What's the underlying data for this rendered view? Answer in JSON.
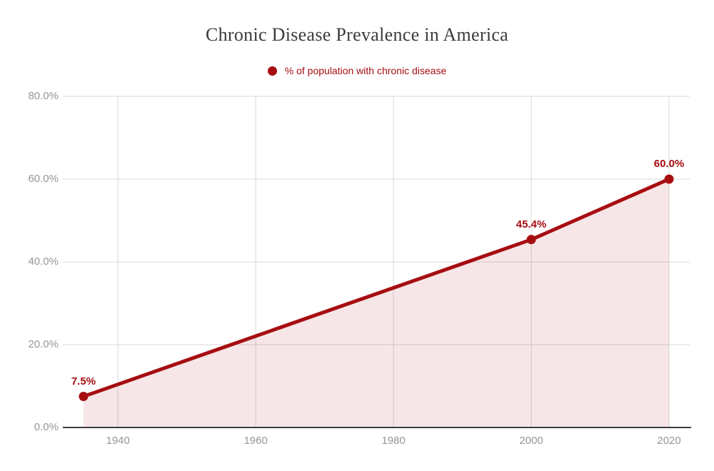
{
  "chart_data": {
    "type": "area",
    "title": "Chronic Disease Prevalence in America",
    "legend_label": "% of population with chronic disease",
    "legend_position": "top",
    "legend_marker": "circle-icon",
    "grid": true,
    "xlabel": "",
    "ylabel": "",
    "xlim": [
      1932,
      2023
    ],
    "ylim": [
      0,
      80
    ],
    "x": [
      1935,
      2000,
      2020
    ],
    "series": [
      {
        "name": "% of population with chronic disease",
        "values": [
          7.5,
          45.4,
          60.0
        ]
      }
    ],
    "points": [
      {
        "x": 1935,
        "y": 7.5,
        "label": "7.5%"
      },
      {
        "x": 2000,
        "y": 45.4,
        "label": "45.4%"
      },
      {
        "x": 2020,
        "y": 60.0,
        "label": "60.0%"
      }
    ],
    "xticks": [
      {
        "value": 1940,
        "label": "1940"
      },
      {
        "value": 1960,
        "label": "1960"
      },
      {
        "value": 1980,
        "label": "1980"
      },
      {
        "value": 2000,
        "label": "2000"
      },
      {
        "value": 2020,
        "label": "2020"
      }
    ],
    "yticks": [
      {
        "value": 0,
        "label": "0.0%"
      },
      {
        "value": 20,
        "label": "20.0%"
      },
      {
        "value": 40,
        "label": "40.0%"
      },
      {
        "value": 60,
        "label": "60.0%"
      },
      {
        "value": 80,
        "label": "80.0%"
      }
    ],
    "colors": {
      "series": "#A60D11",
      "area_fill": "rgba(166,13,17,0.10)",
      "grid": "#D9D9D9",
      "axis_line": "#3D3D3D",
      "tick_text": "#969696",
      "title_text": "#3B3B3B"
    }
  }
}
